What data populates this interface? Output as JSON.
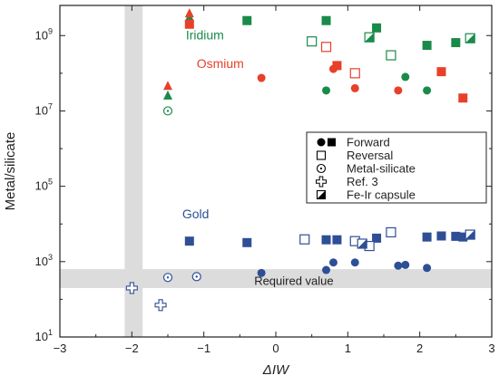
{
  "colors": {
    "iridium": "#1a8a4a",
    "osmium": "#e8402a",
    "gold": "#2e4f96",
    "band": "#dcdcdc",
    "axis": "#231f20"
  },
  "chart_data": {
    "type": "scatter",
    "xlabel": "ΔIW",
    "ylabel": "Metal/silicate",
    "xlim": [
      -3,
      3
    ],
    "ylim_log10": [
      1,
      9.8
    ],
    "y_scale": "log",
    "x_ticks": [
      -3,
      -2,
      -1,
      0,
      1,
      2,
      3
    ],
    "x_tick_labels": [
      "−3",
      "−2",
      "−1",
      "0",
      "1",
      "2",
      "3"
    ],
    "y_ticks_log10": [
      1,
      3,
      5,
      7,
      9
    ],
    "y_tick_base": "10",
    "required_band": {
      "label": "Required value",
      "y_log10_range": [
        2.3,
        2.8
      ]
    },
    "vertical_band": {
      "x_range": [
        -2.1,
        -1.85
      ]
    },
    "series_labels": {
      "iridium": "Iridium",
      "osmium": "Osmium",
      "gold": "Gold"
    },
    "legend": {
      "placement": "center-right",
      "entries": [
        {
          "symbol": "filled-circle-square",
          "label": "Forward"
        },
        {
          "symbol": "open-square",
          "label": "Reversal"
        },
        {
          "symbol": "dotted-circle",
          "label": "Metal-silicate"
        },
        {
          "symbol": "open-cross",
          "label": "Ref. 3"
        },
        {
          "symbol": "half-filled-square",
          "label": "Fe-Ir capsule"
        }
      ]
    },
    "series": [
      {
        "element": "iridium",
        "points": [
          {
            "x": -0.4,
            "y": 2500000000.0,
            "marker": "square",
            "fill": "filled"
          },
          {
            "x": 0.7,
            "y": 2500000000.0,
            "marker": "square",
            "fill": "filled"
          },
          {
            "x": 1.4,
            "y": 1600000000.0,
            "marker": "square",
            "fill": "filled"
          },
          {
            "x": 2.1,
            "y": 550000000.0,
            "marker": "square",
            "fill": "filled"
          },
          {
            "x": 2.5,
            "y": 650000000.0,
            "marker": "square",
            "fill": "filled"
          },
          {
            "x": 0.5,
            "y": 700000000.0,
            "marker": "square",
            "fill": "open"
          },
          {
            "x": 1.6,
            "y": 300000000.0,
            "marker": "square",
            "fill": "open"
          },
          {
            "x": 1.3,
            "y": 900000000.0,
            "marker": "square",
            "fill": "half"
          },
          {
            "x": 2.7,
            "y": 850000000.0,
            "marker": "square",
            "fill": "half"
          },
          {
            "x": 0.7,
            "y": 35000000.0,
            "marker": "circle",
            "fill": "filled"
          },
          {
            "x": 1.8,
            "y": 80000000.0,
            "marker": "circle",
            "fill": "filled"
          },
          {
            "x": 2.1,
            "y": 35000000.0,
            "marker": "circle",
            "fill": "filled"
          },
          {
            "x": -1.5,
            "y": 10000000.0,
            "marker": "circle",
            "fill": "dotted"
          },
          {
            "x": -1.5,
            "y": 25000000.0,
            "marker": "triangle",
            "fill": "filled"
          },
          {
            "x": -1.2,
            "y": 3000000000.0,
            "marker": "triangle",
            "fill": "filled"
          }
        ]
      },
      {
        "element": "osmium",
        "points": [
          {
            "x": -1.2,
            "y": 2000000000.0,
            "marker": "square",
            "fill": "filled"
          },
          {
            "x": 0.85,
            "y": 160000000.0,
            "marker": "square",
            "fill": "filled"
          },
          {
            "x": 2.3,
            "y": 110000000.0,
            "marker": "square",
            "fill": "filled"
          },
          {
            "x": 2.6,
            "y": 22000000.0,
            "marker": "square",
            "fill": "filled"
          },
          {
            "x": 0.7,
            "y": 500000000.0,
            "marker": "square",
            "fill": "open"
          },
          {
            "x": 1.1,
            "y": 100000000.0,
            "marker": "square",
            "fill": "open"
          },
          {
            "x": -0.2,
            "y": 75000000.0,
            "marker": "circle",
            "fill": "filled"
          },
          {
            "x": 0.8,
            "y": 130000000.0,
            "marker": "circle",
            "fill": "filled"
          },
          {
            "x": 1.1,
            "y": 40000000.0,
            "marker": "circle",
            "fill": "filled"
          },
          {
            "x": 1.7,
            "y": 35000000.0,
            "marker": "circle",
            "fill": "filled"
          },
          {
            "x": -1.5,
            "y": 45000000.0,
            "marker": "triangle",
            "fill": "filled"
          },
          {
            "x": -1.2,
            "y": 3800000000.0,
            "marker": "triangle",
            "fill": "filled"
          }
        ]
      },
      {
        "element": "gold",
        "points": [
          {
            "x": -1.2,
            "y": 3500,
            "marker": "square",
            "fill": "filled"
          },
          {
            "x": -0.4,
            "y": 3200,
            "marker": "square",
            "fill": "filled"
          },
          {
            "x": 0.7,
            "y": 3800,
            "marker": "square",
            "fill": "filled"
          },
          {
            "x": 0.85,
            "y": 3800,
            "marker": "square",
            "fill": "filled"
          },
          {
            "x": 1.4,
            "y": 4200,
            "marker": "square",
            "fill": "filled"
          },
          {
            "x": 2.1,
            "y": 4500,
            "marker": "square",
            "fill": "filled"
          },
          {
            "x": 2.3,
            "y": 4800,
            "marker": "square",
            "fill": "filled"
          },
          {
            "x": 2.5,
            "y": 4700,
            "marker": "square",
            "fill": "filled"
          },
          {
            "x": 2.6,
            "y": 4500,
            "marker": "square",
            "fill": "filled"
          },
          {
            "x": 0.4,
            "y": 3900,
            "marker": "square",
            "fill": "open"
          },
          {
            "x": 1.1,
            "y": 3500,
            "marker": "square",
            "fill": "open"
          },
          {
            "x": 1.3,
            "y": 2600,
            "marker": "square",
            "fill": "open"
          },
          {
            "x": 1.6,
            "y": 6000,
            "marker": "square",
            "fill": "open"
          },
          {
            "x": 1.2,
            "y": 3000,
            "marker": "square",
            "fill": "half"
          },
          {
            "x": 2.7,
            "y": 5200,
            "marker": "square",
            "fill": "half"
          },
          {
            "x": -0.2,
            "y": 500,
            "marker": "circle",
            "fill": "filled"
          },
          {
            "x": 0.7,
            "y": 600,
            "marker": "circle",
            "fill": "filled"
          },
          {
            "x": 0.8,
            "y": 950,
            "marker": "circle",
            "fill": "filled"
          },
          {
            "x": 1.1,
            "y": 950,
            "marker": "circle",
            "fill": "filled"
          },
          {
            "x": 1.7,
            "y": 780,
            "marker": "circle",
            "fill": "filled"
          },
          {
            "x": 1.8,
            "y": 820,
            "marker": "circle",
            "fill": "filled"
          },
          {
            "x": 2.1,
            "y": 680,
            "marker": "circle",
            "fill": "filled"
          },
          {
            "x": -1.5,
            "y": 380,
            "marker": "circle",
            "fill": "dotted"
          },
          {
            "x": -1.1,
            "y": 400,
            "marker": "circle",
            "fill": "dotted"
          },
          {
            "x": -2.0,
            "y": 200,
            "marker": "cross",
            "fill": "open"
          },
          {
            "x": -1.6,
            "y": 70,
            "marker": "cross",
            "fill": "open"
          }
        ]
      }
    ]
  }
}
